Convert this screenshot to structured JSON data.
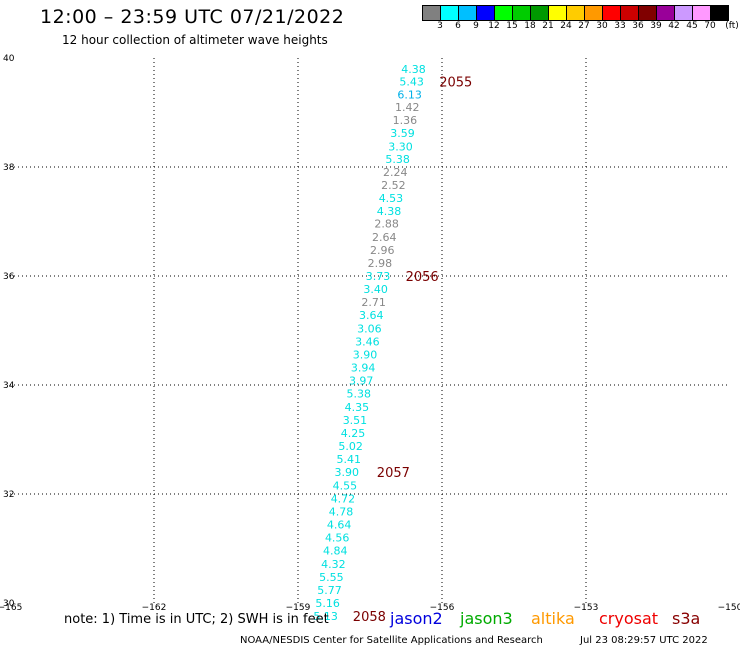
{
  "header": {
    "title": "12:00 – 23:59 UTC 07/21/2022",
    "subtitle": "12 hour collection of altimeter wave heights"
  },
  "color_scale": {
    "labels": [
      "3",
      "6",
      "9",
      "12",
      "15",
      "18",
      "21",
      "24",
      "27",
      "30",
      "33",
      "36",
      "39",
      "42",
      "45",
      "70",
      "(ft)"
    ],
    "colors": [
      "#808080",
      "#00ffff",
      "#00bfff",
      "#0000ff",
      "#00ff00",
      "#00cc00",
      "#009900",
      "#ffff00",
      "#ffcc00",
      "#ff9900",
      "#ff0000",
      "#cc0000",
      "#800000",
      "#990099",
      "#cc99ff",
      "#ff99ff",
      "#000000"
    ]
  },
  "map": {
    "lon_ticks": [
      "-165",
      "-162",
      "-159",
      "-156",
      "-153",
      "-150"
    ],
    "lat_ticks": [
      "30",
      "32",
      "34",
      "36",
      "38",
      "40"
    ],
    "lon_range": [
      -165,
      -150
    ],
    "lat_range": [
      30,
      40
    ],
    "gridlines": "dotted"
  },
  "observations": [
    {
      "value": "4.38",
      "color": "#00e0e0",
      "lon": -156.13,
      "lat": 39.8
    },
    {
      "value": "5.43",
      "color": "#00e0e0",
      "lon": -156.17,
      "lat": 39.57
    },
    {
      "value": "6.13",
      "color": "#00b0e8",
      "lon": -156.21,
      "lat": 39.33
    },
    {
      "value": "1.42",
      "color": "#888888",
      "lon": -156.26,
      "lat": 39.1
    },
    {
      "value": "1.36",
      "color": "#888888",
      "lon": -156.31,
      "lat": 38.86
    },
    {
      "value": "3.59",
      "color": "#00e0e0",
      "lon": -156.36,
      "lat": 38.62
    },
    {
      "value": "3.30",
      "color": "#00e0e0",
      "lon": -156.4,
      "lat": 38.38
    },
    {
      "value": "5.38",
      "color": "#00e0e0",
      "lon": -156.46,
      "lat": 38.15
    },
    {
      "value": "2.24",
      "color": "#888888",
      "lon": -156.51,
      "lat": 37.91
    },
    {
      "value": "2.52",
      "color": "#888888",
      "lon": -156.55,
      "lat": 37.67
    },
    {
      "value": "4.53",
      "color": "#00e0e0",
      "lon": -156.6,
      "lat": 37.43
    },
    {
      "value": "4.38",
      "color": "#00e0e0",
      "lon": -156.64,
      "lat": 37.19
    },
    {
      "value": "2.88",
      "color": "#888888",
      "lon": -156.69,
      "lat": 36.96
    },
    {
      "value": "2.64",
      "color": "#888888",
      "lon": -156.74,
      "lat": 36.72
    },
    {
      "value": "2.96",
      "color": "#888888",
      "lon": -156.78,
      "lat": 36.48
    },
    {
      "value": "2.98",
      "color": "#888888",
      "lon": -156.83,
      "lat": 36.24
    },
    {
      "value": "3.73",
      "color": "#00e0e0",
      "lon": -156.87,
      "lat": 36.0
    },
    {
      "value": "3.40",
      "color": "#00e0e0",
      "lon": -156.92,
      "lat": 35.76
    },
    {
      "value": "2.71",
      "color": "#888888",
      "lon": -156.96,
      "lat": 35.52
    },
    {
      "value": "3.64",
      "color": "#00e0e0",
      "lon": -157.01,
      "lat": 35.28
    },
    {
      "value": "3.06",
      "color": "#00e0e0",
      "lon": -157.05,
      "lat": 35.04
    },
    {
      "value": "3.46",
      "color": "#00e0e0",
      "lon": -157.09,
      "lat": 34.8
    },
    {
      "value": "3.90",
      "color": "#00e0e0",
      "lon": -157.14,
      "lat": 34.56
    },
    {
      "value": "3.94",
      "color": "#00e0e0",
      "lon": -157.18,
      "lat": 34.32
    },
    {
      "value": "3.97",
      "color": "#00e0e0",
      "lon": -157.22,
      "lat": 34.08
    },
    {
      "value": "5.38",
      "color": "#00e0e0",
      "lon": -157.27,
      "lat": 33.84
    },
    {
      "value": "4.35",
      "color": "#00e0e0",
      "lon": -157.31,
      "lat": 33.6
    },
    {
      "value": "3.51",
      "color": "#00e0e0",
      "lon": -157.35,
      "lat": 33.36
    },
    {
      "value": "4.25",
      "color": "#00e0e0",
      "lon": -157.39,
      "lat": 33.12
    },
    {
      "value": "5.02",
      "color": "#00e0e0",
      "lon": -157.44,
      "lat": 32.88
    },
    {
      "value": "5.41",
      "color": "#00e0e0",
      "lon": -157.48,
      "lat": 32.64
    },
    {
      "value": "3.90",
      "color": "#00e0e0",
      "lon": -157.52,
      "lat": 32.4
    },
    {
      "value": "4.55",
      "color": "#00e0e0",
      "lon": -157.56,
      "lat": 32.16
    },
    {
      "value": "4.72",
      "color": "#00e0e0",
      "lon": -157.6,
      "lat": 31.92
    },
    {
      "value": "4.78",
      "color": "#00e0e0",
      "lon": -157.64,
      "lat": 31.68
    },
    {
      "value": "4.64",
      "color": "#00e0e0",
      "lon": -157.68,
      "lat": 31.44
    },
    {
      "value": "4.56",
      "color": "#00e0e0",
      "lon": -157.72,
      "lat": 31.2
    },
    {
      "value": "4.84",
      "color": "#00e0e0",
      "lon": -157.76,
      "lat": 30.96
    },
    {
      "value": "4.32",
      "color": "#00e0e0",
      "lon": -157.8,
      "lat": 30.72
    },
    {
      "value": "5.55",
      "color": "#00e0e0",
      "lon": -157.84,
      "lat": 30.48
    },
    {
      "value": "5.77",
      "color": "#00e0e0",
      "lon": -157.88,
      "lat": 30.24
    },
    {
      "value": "5.16",
      "color": "#00e0e0",
      "lon": -157.92,
      "lat": 30.0
    },
    {
      "value": "5.13",
      "color": "#00e0e0",
      "lon": -157.96,
      "lat": 29.76
    }
  ],
  "orbit_labels": [
    {
      "text": "2055",
      "lon": -156.1,
      "lat": 39.57
    },
    {
      "text": "2056",
      "lon": -156.8,
      "lat": 36.0
    },
    {
      "text": "2057",
      "lon": -157.4,
      "lat": 32.4
    },
    {
      "text": "2058",
      "lon": -157.9,
      "lat": 29.76
    }
  ],
  "footer": {
    "note": "note: 1) Time is in UTC; 2) SWH is in feet",
    "satellites": [
      {
        "name": "jason2",
        "color": "#0000dd"
      },
      {
        "name": "jason3",
        "color": "#00aa00"
      },
      {
        "name": "altika",
        "color": "#ff9900"
      },
      {
        "name": "cryosat",
        "color": "#ee0000"
      },
      {
        "name": "s3a",
        "color": "#880000"
      }
    ],
    "credit": "NOAA/NESDIS Center for Satellite Applications and Research",
    "timestamp": "Jul 23 08:29:57 UTC 2022"
  }
}
